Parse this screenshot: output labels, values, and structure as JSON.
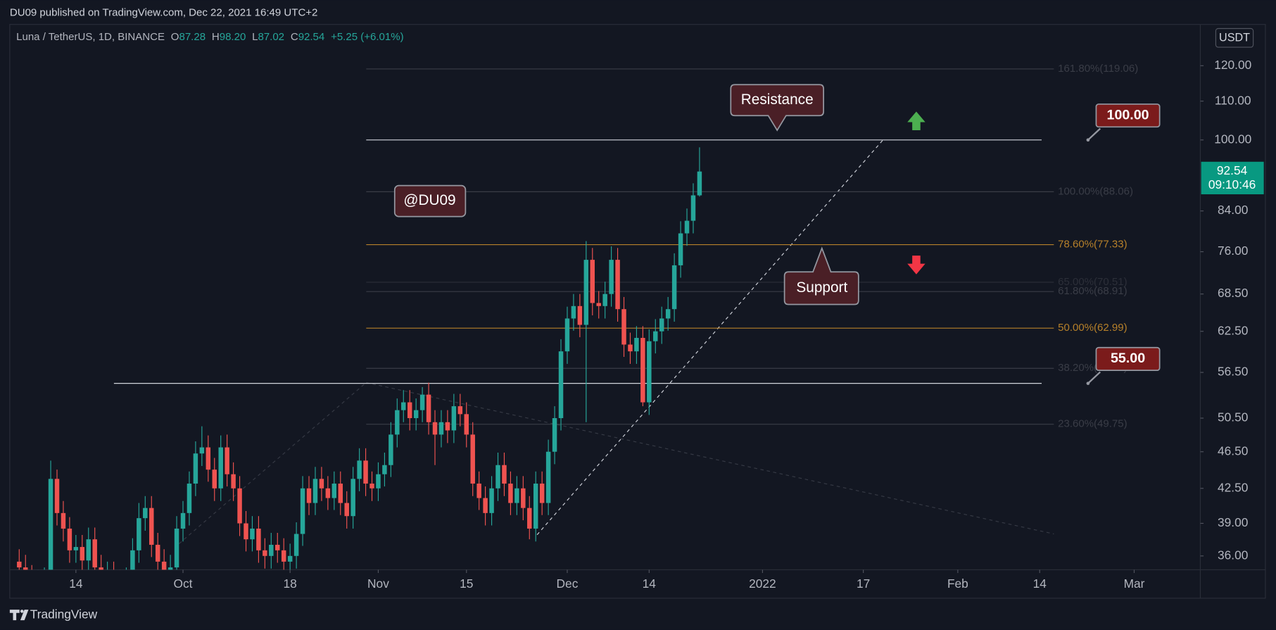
{
  "header": {
    "published": "DU09 published on TradingView.com, Dec 22, 2021 16:49 UTC+2",
    "brand": "TradingView"
  },
  "chart_data": {
    "type": "candlestick",
    "legend": {
      "symbol": "Luna / TetherUS, 1D, BINANCE",
      "ohlc": [
        {
          "key": "O",
          "value": "87.28"
        },
        {
          "key": "H",
          "value": "98.20"
        },
        {
          "key": "L",
          "value": "87.02"
        },
        {
          "key": "C",
          "value": "92.54"
        }
      ],
      "change": "+5.25 (+6.01%)"
    },
    "currency": "USDT",
    "open": [
      35.5,
      35,
      34.2,
      33.5,
      33.8,
      34,
      43.5,
      40,
      38.5,
      36.5,
      36.8,
      35.6,
      37.5,
      35,
      34,
      34.5,
      33.8,
      33.5,
      34,
      36.5,
      39.5,
      40.5,
      37,
      35.5,
      34,
      35,
      38.5,
      40,
      43,
      46.3,
      47,
      44.5,
      42.5,
      47,
      44,
      42.5,
      39,
      37.5,
      38.5,
      36.5,
      36,
      37,
      36.5,
      35.5,
      36,
      38,
      42.5,
      41,
      43.5,
      42.5,
      41.5,
      43,
      41,
      39.7,
      43.5,
      45.5,
      43,
      42.5,
      44,
      45,
      48.5,
      51.5,
      52.5,
      50.5,
      51.5,
      53.5,
      50,
      48.5,
      50,
      49,
      52,
      51,
      48.5,
      43,
      41.5,
      40,
      42.5,
      45,
      43,
      41,
      42.5,
      40.5,
      38.5,
      43,
      41,
      46.5,
      50.5,
      59.5,
      64.5,
      66.5,
      63.5,
      74.5,
      67,
      66.5,
      68.5,
      74.5,
      66,
      60.5,
      59.5,
      61.5,
      52.5,
      61,
      62.5,
      64.5,
      66,
      73.5,
      79.5,
      82,
      87.28
    ],
    "high": [
      36.6,
      36.1,
      35.2,
      34.8,
      35,
      45.5,
      44.5,
      41.2,
      39.6,
      37.9,
      37.9,
      38.6,
      38.6,
      36.1,
      35.5,
      35.5,
      34.8,
      35,
      37.6,
      41,
      41.7,
      41.7,
      38.1,
      36.6,
      36.1,
      39.7,
      41.2,
      44.3,
      47.7,
      49.5,
      48.4,
      45.8,
      48.4,
      48.5,
      45.3,
      43.8,
      40.2,
      39.7,
      39.7,
      37.6,
      38.1,
      38.1,
      37.6,
      37.1,
      39.1,
      43.8,
      43.8,
      44.8,
      44.8,
      43.8,
      44.3,
      44.3,
      42.2,
      44.8,
      46.9,
      46.9,
      44.3,
      45.3,
      46.4,
      50,
      53,
      54.1,
      54.1,
      53,
      54.5,
      55.1,
      51.5,
      51.5,
      51.5,
      53.6,
      53.6,
      52.5,
      50,
      44.3,
      42.7,
      43.8,
      46.4,
      46.4,
      44.3,
      43.8,
      43.8,
      41.7,
      44.3,
      44.3,
      47.9,
      52,
      61.3,
      66.4,
      68.5,
      68.5,
      78,
      76.7,
      69,
      70.6,
      77,
      76.7,
      68,
      62.3,
      63.3,
      63.3,
      62.8,
      64.4,
      66.4,
      68,
      75.7,
      81.9,
      84.5,
      89.9,
      98.2
    ],
    "low": [
      34,
      33.2,
      32.5,
      32.5,
      32.8,
      33,
      38.8,
      37.3,
      35.4,
      35.4,
      34.5,
      34.5,
      34,
      33,
      33,
      32.8,
      32.5,
      32.5,
      33,
      35.4,
      38.3,
      35.9,
      34.4,
      33,
      33,
      34,
      37.3,
      38.8,
      41.7,
      44.9,
      43.2,
      41.2,
      41.2,
      42.7,
      41.2,
      37.8,
      36.4,
      36.4,
      35.4,
      34.9,
      34.9,
      35.4,
      34.4,
      34.4,
      34.9,
      36.9,
      39.8,
      39.8,
      41.2,
      40.3,
      40.3,
      39.8,
      38.5,
      38.5,
      42.2,
      41.7,
      41.2,
      41.2,
      42.7,
      43.7,
      47,
      50,
      49,
      49,
      50,
      48.5,
      45,
      47,
      47.5,
      47.5,
      49.5,
      47,
      41.7,
      40.3,
      38.8,
      38.8,
      41.2,
      41.7,
      39.8,
      39.8,
      39.3,
      37.5,
      37.3,
      39.8,
      39.8,
      45.1,
      49,
      57.7,
      62.6,
      61.6,
      50,
      65,
      64.5,
      64.5,
      66.4,
      64,
      58.7,
      57.7,
      57.7,
      52,
      50.9,
      59.2,
      60.6,
      62.6,
      64,
      71.3,
      77.1,
      79.5,
      87.02
    ],
    "close": [
      35,
      34.2,
      33.5,
      33.8,
      34,
      43.5,
      40,
      38.5,
      36.5,
      36.8,
      35.6,
      37.5,
      35,
      34,
      34.5,
      33.8,
      33.5,
      34,
      36.5,
      39.5,
      40.5,
      37,
      35.5,
      34,
      35,
      38.5,
      40,
      43,
      46.3,
      47,
      44.5,
      42.5,
      47,
      44,
      42.5,
      39,
      37.5,
      38.5,
      36.5,
      36,
      37,
      36.5,
      35.5,
      36,
      38,
      42.5,
      41,
      43.5,
      42.5,
      41.5,
      43,
      41,
      39.7,
      43.5,
      45.5,
      43,
      42.5,
      44,
      45,
      48.5,
      51.5,
      52.5,
      50.5,
      51.5,
      53.5,
      50,
      48.5,
      50,
      49,
      52,
      51,
      48.5,
      43,
      41.5,
      40,
      42.5,
      45,
      43,
      41,
      42.5,
      40.5,
      38.5,
      43,
      41,
      46.5,
      50.5,
      59.5,
      64.5,
      66.5,
      63.5,
      74.5,
      67,
      66.5,
      68.5,
      74.5,
      66,
      60.5,
      59.5,
      61.5,
      52.5,
      61,
      62.5,
      64.5,
      66,
      73.5,
      79.5,
      82,
      87.28,
      92.54
    ],
    "up_color": "#26a69a",
    "down_color": "#ef5350",
    "log_scale": true,
    "xlim": [
      -1.5,
      187.5
    ],
    "xticks": [
      {
        "value": 9,
        "label": "14"
      },
      {
        "value": 26,
        "label": "Oct"
      },
      {
        "value": 43,
        "label": "18"
      },
      {
        "value": 57,
        "label": "Nov"
      },
      {
        "value": 71,
        "label": "15"
      },
      {
        "value": 87,
        "label": "Dec"
      },
      {
        "value": 100,
        "label": "14"
      },
      {
        "value": 118,
        "label": "2022"
      },
      {
        "value": 134,
        "label": "17"
      },
      {
        "value": 149,
        "label": "Feb"
      },
      {
        "value": 162,
        "label": "14"
      },
      {
        "value": 177,
        "label": "Mar"
      }
    ],
    "ylim": [
      34.8,
      132.8
    ],
    "yticks": [
      {
        "value": 36,
        "label": "36.00"
      },
      {
        "value": 39,
        "label": "39.00"
      },
      {
        "value": 42.5,
        "label": "42.50"
      },
      {
        "value": 46.5,
        "label": "46.50"
      },
      {
        "value": 50.5,
        "label": "50.50"
      },
      {
        "value": 56.5,
        "label": "56.50"
      },
      {
        "value": 62.5,
        "label": "62.50"
      },
      {
        "value": 68.5,
        "label": "68.50"
      },
      {
        "value": 76,
        "label": "76.00"
      },
      {
        "value": 84,
        "label": "84.00"
      },
      {
        "value": 100,
        "label": "100.00"
      },
      {
        "value": 110,
        "label": "110.00"
      },
      {
        "value": 120,
        "label": "120.00"
      }
    ],
    "levels": [
      {
        "value": 100,
        "label": "100.00"
      },
      {
        "value": 55,
        "label": "55.00"
      }
    ],
    "fib_levels": [
      {
        "value": 119.06,
        "label": "161.80%(119.06)",
        "color": "#3a3d47"
      },
      {
        "value": 88.06,
        "label": "100.00%(88.06)",
        "color": "#3a3d47"
      },
      {
        "value": 77.33,
        "label": "78.60%(77.33)",
        "color": "#b7812a"
      },
      {
        "value": 70.51,
        "label": "65.00%(70.51)",
        "color": "#2c2f39"
      },
      {
        "value": 68.91,
        "label": "61.80%(68.91)",
        "color": "#3a3d47"
      },
      {
        "value": 62.99,
        "label": "50.00%(62.99)",
        "color": "#b7812a"
      },
      {
        "value": 57.07,
        "label": "38.20%(57.07)",
        "color": "#3a3d47"
      },
      {
        "value": 49.75,
        "label": "23.60%(49.75)",
        "color": "#3a3d47"
      }
    ],
    "price_tag": {
      "label": "92.54",
      "countdown": "09:10:46"
    },
    "annotations": [
      "Resistance",
      "@DU09",
      "Support"
    ]
  }
}
